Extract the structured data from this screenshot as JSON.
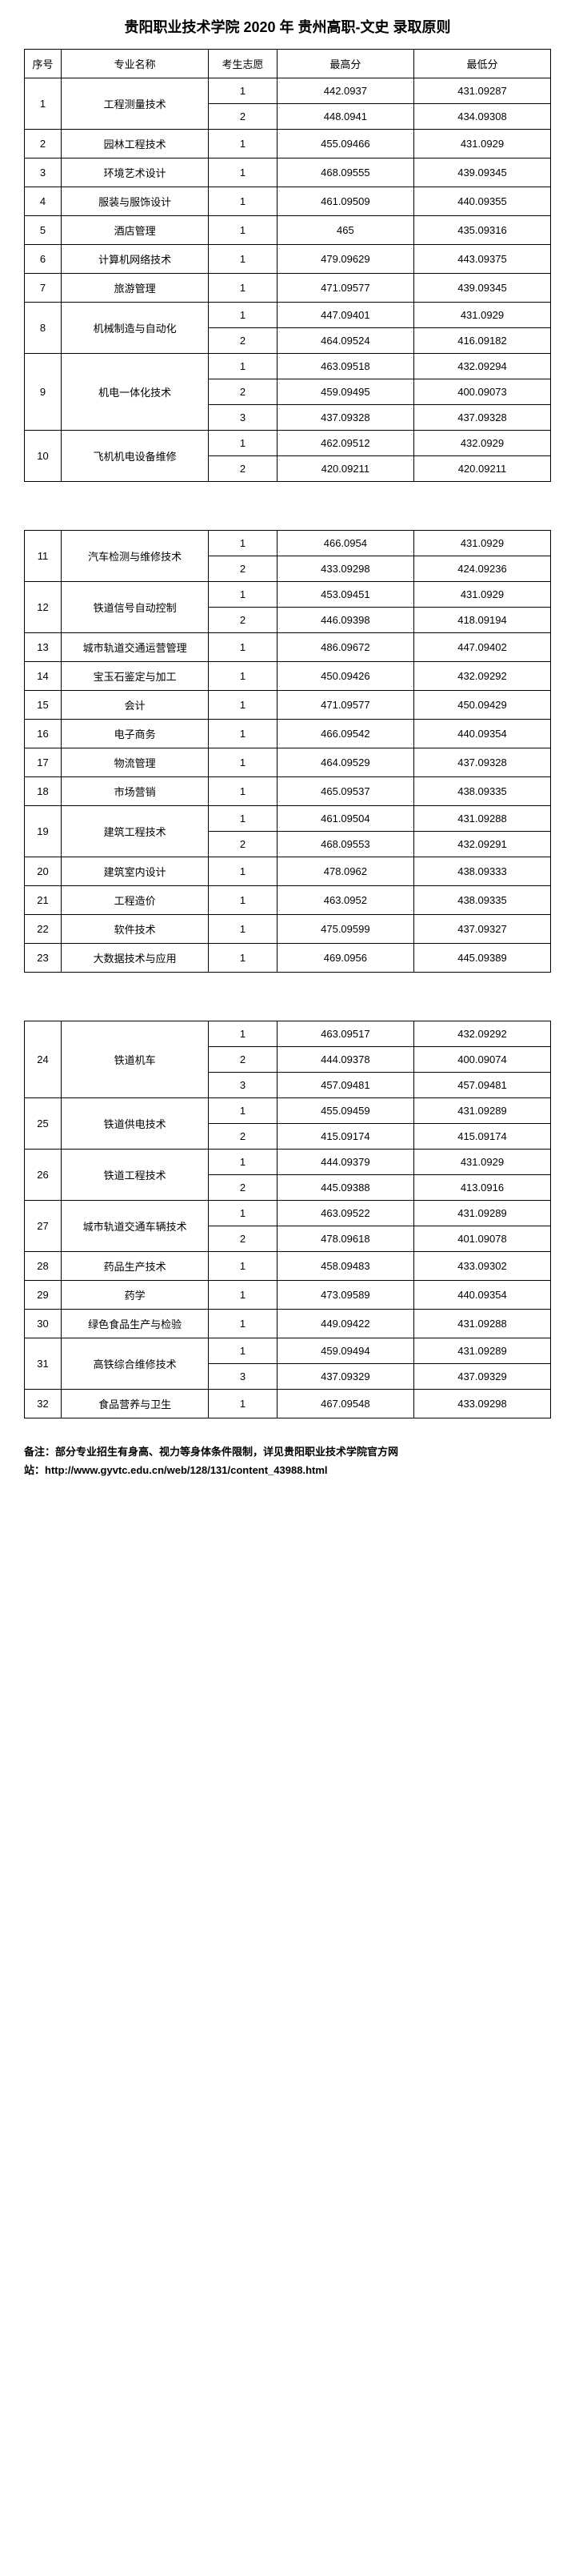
{
  "title": "贵阳职业技术学院 2020 年 贵州高职-文史 录取原则",
  "headers": {
    "seq": "序号",
    "name": "专业名称",
    "pref": "考生志愿",
    "high": "最高分",
    "low": "最低分"
  },
  "footer": {
    "line1": "备注：部分专业招生有身高、视力等身体条件限制，详见贵阳职业技术学院官方网",
    "line2": "站：http://www.gyvtc.edu.cn/web/128/131/content_43988.html"
  },
  "sections": [
    [
      {
        "seq": "1",
        "name": "工程测量技术",
        "rows": [
          {
            "p": "1",
            "h": "442.0937",
            "l": "431.09287"
          },
          {
            "p": "2",
            "h": "448.0941",
            "l": "434.09308"
          }
        ]
      },
      {
        "seq": "2",
        "name": "园林工程技术",
        "rows": [
          {
            "p": "1",
            "h": "455.09466",
            "l": "431.0929"
          }
        ]
      },
      {
        "seq": "3",
        "name": "环境艺术设计",
        "rows": [
          {
            "p": "1",
            "h": "468.09555",
            "l": "439.09345"
          }
        ]
      },
      {
        "seq": "4",
        "name": "服装与服饰设计",
        "rows": [
          {
            "p": "1",
            "h": "461.09509",
            "l": "440.09355"
          }
        ]
      },
      {
        "seq": "5",
        "name": "酒店管理",
        "rows": [
          {
            "p": "1",
            "h": "465",
            "l": "435.09316"
          }
        ]
      },
      {
        "seq": "6",
        "name": "计算机网络技术",
        "rows": [
          {
            "p": "1",
            "h": "479.09629",
            "l": "443.09375"
          }
        ]
      },
      {
        "seq": "7",
        "name": "旅游管理",
        "rows": [
          {
            "p": "1",
            "h": "471.09577",
            "l": "439.09345"
          }
        ]
      },
      {
        "seq": "8",
        "name": "机械制造与自动化",
        "rows": [
          {
            "p": "1",
            "h": "447.09401",
            "l": "431.0929"
          },
          {
            "p": "2",
            "h": "464.09524",
            "l": "416.09182"
          }
        ]
      },
      {
        "seq": "9",
        "name": "机电一体化技术",
        "rows": [
          {
            "p": "1",
            "h": "463.09518",
            "l": "432.09294"
          },
          {
            "p": "2",
            "h": "459.09495",
            "l": "400.09073"
          },
          {
            "p": "3",
            "h": "437.09328",
            "l": "437.09328"
          }
        ]
      },
      {
        "seq": "10",
        "name": "飞机机电设备维修",
        "rows": [
          {
            "p": "1",
            "h": "462.09512",
            "l": "432.0929"
          },
          {
            "p": "2",
            "h": "420.09211",
            "l": "420.09211"
          }
        ]
      }
    ],
    [
      {
        "seq": "11",
        "name": "汽车检测与维修技术",
        "rows": [
          {
            "p": "1",
            "h": "466.0954",
            "l": "431.0929"
          },
          {
            "p": "2",
            "h": "433.09298",
            "l": "424.09236"
          }
        ]
      },
      {
        "seq": "12",
        "name": "铁道信号自动控制",
        "rows": [
          {
            "p": "1",
            "h": "453.09451",
            "l": "431.0929"
          },
          {
            "p": "2",
            "h": "446.09398",
            "l": "418.09194"
          }
        ]
      },
      {
        "seq": "13",
        "name": "城市轨道交通运营管理",
        "rows": [
          {
            "p": "1",
            "h": "486.09672",
            "l": "447.09402"
          }
        ]
      },
      {
        "seq": "14",
        "name": "宝玉石鉴定与加工",
        "rows": [
          {
            "p": "1",
            "h": "450.09426",
            "l": "432.09292"
          }
        ]
      },
      {
        "seq": "15",
        "name": "会计",
        "rows": [
          {
            "p": "1",
            "h": "471.09577",
            "l": "450.09429"
          }
        ]
      },
      {
        "seq": "16",
        "name": "电子商务",
        "rows": [
          {
            "p": "1",
            "h": "466.09542",
            "l": "440.09354"
          }
        ]
      },
      {
        "seq": "17",
        "name": "物流管理",
        "rows": [
          {
            "p": "1",
            "h": "464.09529",
            "l": "437.09328"
          }
        ]
      },
      {
        "seq": "18",
        "name": "市场营销",
        "rows": [
          {
            "p": "1",
            "h": "465.09537",
            "l": "438.09335"
          }
        ]
      },
      {
        "seq": "19",
        "name": "建筑工程技术",
        "rows": [
          {
            "p": "1",
            "h": "461.09504",
            "l": "431.09288"
          },
          {
            "p": "2",
            "h": "468.09553",
            "l": "432.09291"
          }
        ]
      },
      {
        "seq": "20",
        "name": "建筑室内设计",
        "rows": [
          {
            "p": "1",
            "h": "478.0962",
            "l": "438.09333"
          }
        ]
      },
      {
        "seq": "21",
        "name": "工程造价",
        "rows": [
          {
            "p": "1",
            "h": "463.0952",
            "l": "438.09335"
          }
        ]
      },
      {
        "seq": "22",
        "name": "软件技术",
        "rows": [
          {
            "p": "1",
            "h": "475.09599",
            "l": "437.09327"
          }
        ]
      },
      {
        "seq": "23",
        "name": "大数据技术与应用",
        "rows": [
          {
            "p": "1",
            "h": "469.0956",
            "l": "445.09389"
          }
        ]
      }
    ],
    [
      {
        "seq": "24",
        "name": "铁道机车",
        "rows": [
          {
            "p": "1",
            "h": "463.09517",
            "l": "432.09292"
          },
          {
            "p": "2",
            "h": "444.09378",
            "l": "400.09074"
          },
          {
            "p": "3",
            "h": "457.09481",
            "l": "457.09481"
          }
        ]
      },
      {
        "seq": "25",
        "name": "铁道供电技术",
        "rows": [
          {
            "p": "1",
            "h": "455.09459",
            "l": "431.09289"
          },
          {
            "p": "2",
            "h": "415.09174",
            "l": "415.09174"
          }
        ]
      },
      {
        "seq": "26",
        "name": "铁道工程技术",
        "rows": [
          {
            "p": "1",
            "h": "444.09379",
            "l": "431.0929"
          },
          {
            "p": "2",
            "h": "445.09388",
            "l": "413.0916"
          }
        ]
      },
      {
        "seq": "27",
        "name": "城市轨道交通车辆技术",
        "rows": [
          {
            "p": "1",
            "h": "463.09522",
            "l": "431.09289"
          },
          {
            "p": "2",
            "h": "478.09618",
            "l": "401.09078"
          }
        ]
      },
      {
        "seq": "28",
        "name": "药品生产技术",
        "rows": [
          {
            "p": "1",
            "h": "458.09483",
            "l": "433.09302"
          }
        ]
      },
      {
        "seq": "29",
        "name": "药学",
        "rows": [
          {
            "p": "1",
            "h": "473.09589",
            "l": "440.09354"
          }
        ]
      },
      {
        "seq": "30",
        "name": "绿色食品生产与检验",
        "rows": [
          {
            "p": "1",
            "h": "449.09422",
            "l": "431.09288"
          }
        ]
      },
      {
        "seq": "31",
        "name": "高铁综合维修技术",
        "rows": [
          {
            "p": "1",
            "h": "459.09494",
            "l": "431.09289"
          },
          {
            "p": "3",
            "h": "437.09329",
            "l": "437.09329"
          }
        ]
      },
      {
        "seq": "32",
        "name": "食品营养与卫生",
        "rows": [
          {
            "p": "1",
            "h": "467.09548",
            "l": "433.09298"
          }
        ]
      }
    ]
  ]
}
